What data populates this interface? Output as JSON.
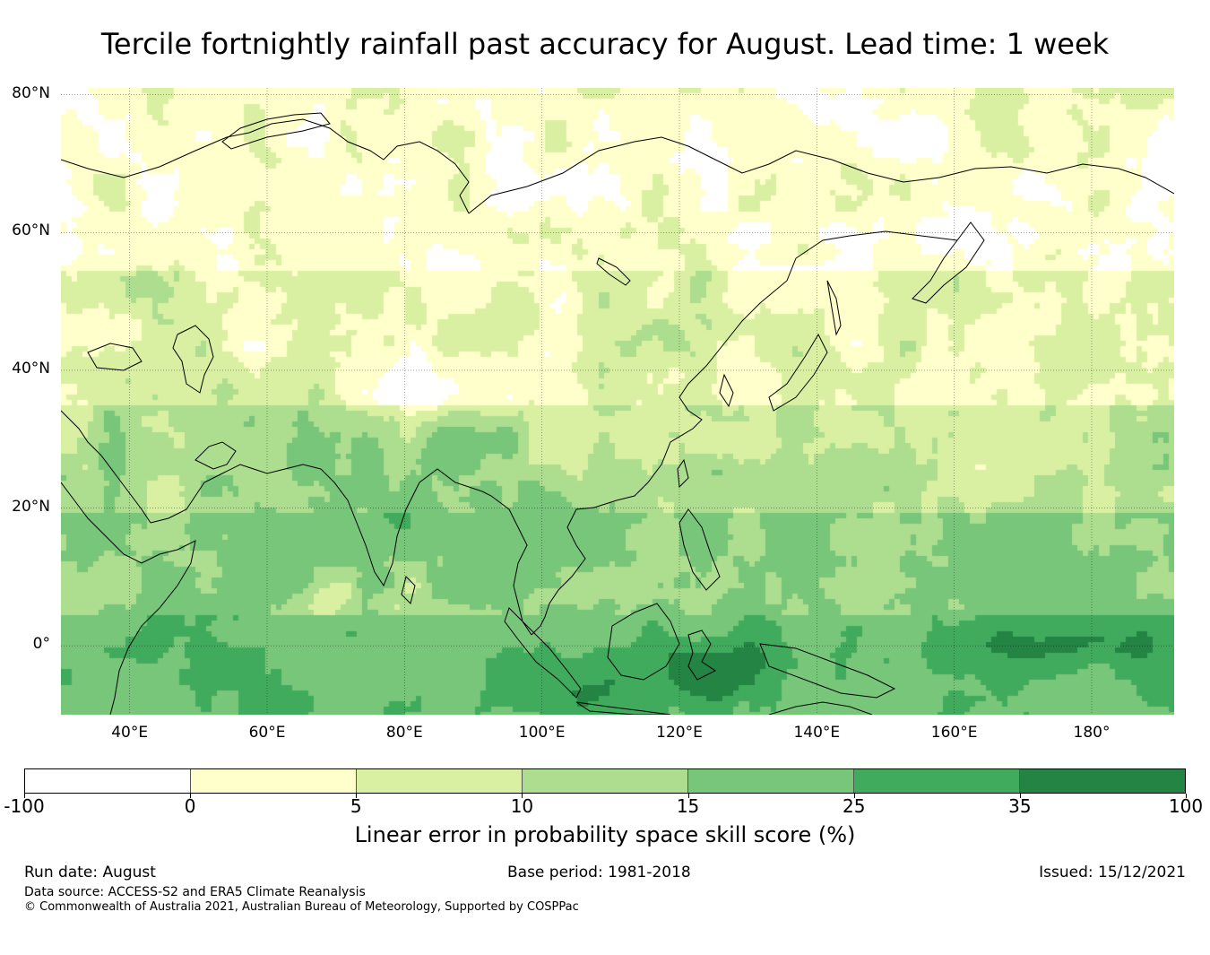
{
  "title": "Tercile fortnightly rainfall past accuracy for August. Lead time: 1 week",
  "map": {
    "type": "skill-map",
    "lon_range": [
      30,
      192
    ],
    "lat_range": [
      -10,
      81
    ],
    "lat_ticks": [
      {
        "value": 80,
        "label": "80°N"
      },
      {
        "value": 60,
        "label": "60°N"
      },
      {
        "value": 40,
        "label": "40°N"
      },
      {
        "value": 20,
        "label": "20°N"
      },
      {
        "value": 0,
        "label": "0°"
      }
    ],
    "lon_ticks": [
      {
        "value": 40,
        "label": "40°E"
      },
      {
        "value": 60,
        "label": "60°E"
      },
      {
        "value": 80,
        "label": "80°E"
      },
      {
        "value": 100,
        "label": "100°E"
      },
      {
        "value": 120,
        "label": "120°E"
      },
      {
        "value": 140,
        "label": "140°E"
      },
      {
        "value": 160,
        "label": "160°E"
      },
      {
        "value": 180,
        "label": "180°"
      }
    ]
  },
  "colorbar": {
    "bounds": [
      "-100",
      "0",
      "5",
      "10",
      "15",
      "25",
      "35",
      "100"
    ],
    "colors": [
      "#ffffff",
      "#ffffcc",
      "#d9f0a3",
      "#addd8e",
      "#78c679",
      "#41ab5d",
      "#238443"
    ],
    "label": "Linear error in probability space skill score (%)"
  },
  "footer": {
    "run_date": "Run date: August",
    "base_period": "Base period: 1981-2018",
    "issued": "Issued: 15/12/2021",
    "data_source": "Data source: ACCESS-S2 and ERA5 Climate Reanalysis",
    "copyright": "© Commonwealth of Australia 2021, Australian Bureau of Meteorology, Supported by COSPPac"
  }
}
